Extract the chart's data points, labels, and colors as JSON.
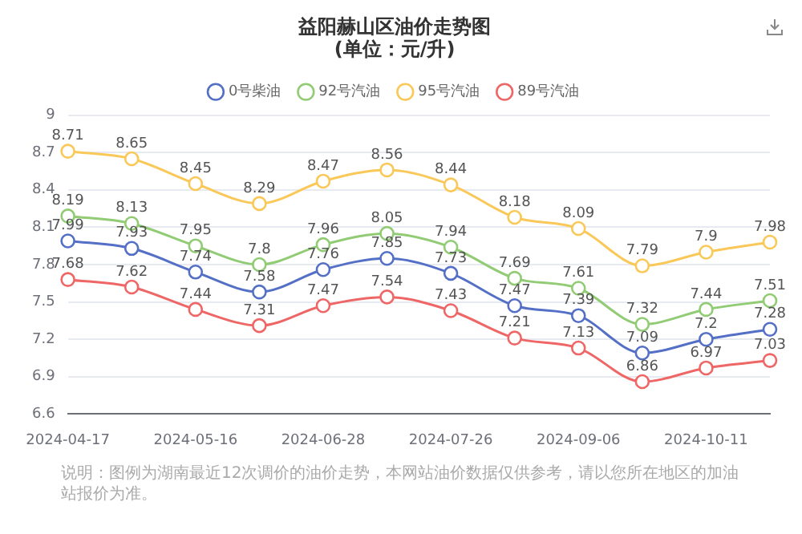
{
  "chart_data": {
    "type": "line",
    "title": "益阳赫山区油价走势图",
    "subtitle": "(单位：元/升)",
    "categories": [
      "2024-04-17",
      null,
      "2024-05-16",
      null,
      "2024-06-28",
      null,
      "2024-07-26",
      null,
      "2024-09-06",
      null,
      "2024-10-11",
      null
    ],
    "series": [
      {
        "name": "0号柴油",
        "color": "#5470c6",
        "values": [
          7.99,
          7.93,
          7.74,
          7.58,
          7.76,
          7.85,
          7.73,
          7.47,
          7.39,
          7.09,
          7.2,
          7.28
        ]
      },
      {
        "name": "92号汽油",
        "color": "#91cc75",
        "values": [
          8.19,
          8.13,
          7.95,
          7.8,
          7.96,
          8.05,
          7.94,
          7.69,
          7.61,
          7.32,
          7.44,
          7.51
        ]
      },
      {
        "name": "95号汽油",
        "color": "#fac858",
        "values": [
          8.71,
          8.65,
          8.45,
          8.29,
          8.47,
          8.56,
          8.44,
          8.18,
          8.09,
          7.79,
          7.9,
          7.98
        ]
      },
      {
        "name": "89号汽油",
        "color": "#ee6666",
        "values": [
          7.68,
          7.62,
          7.44,
          7.31,
          7.47,
          7.54,
          7.43,
          7.21,
          7.13,
          6.86,
          6.97,
          7.03
        ]
      }
    ],
    "ylim": [
      6.6,
      9
    ],
    "yticks": [
      6.6,
      6.9,
      7.2,
      7.5,
      7.8,
      8.1,
      8.4,
      8.7,
      9
    ],
    "grid": "y",
    "legend": "top",
    "marker": "circle",
    "line_style": "solid",
    "data_labels": true,
    "annotations": [
      "说明：图例为湖南最近12次调价的油价走势，本网站油价数据仅供参考，请以您所在地区的加油站报价为准。"
    ]
  }
}
